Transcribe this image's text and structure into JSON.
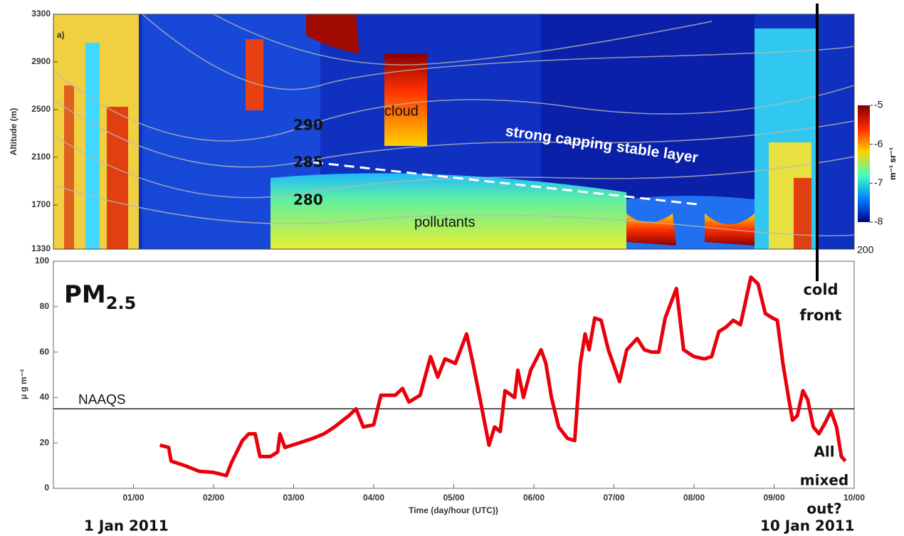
{
  "chart_data": [
    {
      "type": "heatmap",
      "panel_label": "a)",
      "ylabel": "Altitude (m)",
      "ylim": [
        1330,
        3300
      ],
      "yticks": [
        1330,
        1700,
        2100,
        2500,
        2900,
        3300
      ],
      "colorbar": {
        "label": "m⁻¹ sr⁻¹",
        "lim": [
          -8,
          -5
        ],
        "ticks": [
          -5,
          -6,
          -7,
          -8
        ]
      },
      "corner_label": "200",
      "contour_labels": [
        290,
        285,
        280
      ],
      "annotations": {
        "cloud": "cloud",
        "layer": "strong capping stable layer",
        "pollutants": "pollutants"
      }
    },
    {
      "type": "line",
      "title": "PM",
      "title_subscript": "2.5",
      "ylabel": "μ g m⁻³",
      "xlabel": "Time (day/hour (UTC))",
      "xlim": [
        0,
        10
      ],
      "xticks": [
        {
          "value": 1,
          "label": "01/00"
        },
        {
          "value": 2,
          "label": "02/00"
        },
        {
          "value": 3,
          "label": "03/00"
        },
        {
          "value": 4,
          "label": "04/00"
        },
        {
          "value": 5,
          "label": "05/00"
        },
        {
          "value": 6,
          "label": "06/00"
        },
        {
          "value": 7,
          "label": "07/00"
        },
        {
          "value": 8,
          "label": "08/00"
        },
        {
          "value": 9,
          "label": "09/00"
        },
        {
          "value": 10,
          "label": "10/00"
        }
      ],
      "ylim": [
        0,
        100
      ],
      "yticks": [
        0,
        20,
        40,
        60,
        80,
        100
      ],
      "reference_line": {
        "label": "NAAQS",
        "value": 35
      },
      "series": [
        {
          "color": "#e8000b",
          "x": [
            1.33,
            1.44,
            1.47,
            1.64,
            1.82,
            2.0,
            2.16,
            2.22,
            2.36,
            2.44,
            2.52,
            2.58,
            2.71,
            2.8,
            2.83,
            2.89,
            3.07,
            3.24,
            3.38,
            3.51,
            3.69,
            3.78,
            3.87,
            4.0,
            4.09,
            4.27,
            4.36,
            4.44,
            4.58,
            4.71,
            4.8,
            4.89,
            5.02,
            5.16,
            5.24,
            5.33,
            5.44,
            5.51,
            5.58,
            5.64,
            5.76,
            5.8,
            5.87,
            5.96,
            6.09,
            6.15,
            6.22,
            6.31,
            6.42,
            6.51,
            6.58,
            6.64,
            6.69,
            6.76,
            6.84,
            6.93,
            7.07,
            7.16,
            7.29,
            7.38,
            7.47,
            7.56,
            7.64,
            7.78,
            7.87,
            8.0,
            8.13,
            8.22,
            8.31,
            8.4,
            8.49,
            8.58,
            8.71,
            8.8,
            8.89,
            8.98,
            9.04,
            9.11,
            9.18,
            9.23,
            9.29,
            9.36,
            9.42,
            9.49,
            9.56,
            9.64,
            9.71,
            9.78,
            9.84,
            9.89
          ],
          "values": [
            19,
            18,
            12,
            10,
            7.5,
            7,
            5.6,
            11,
            21,
            24,
            24,
            14,
            14,
            16,
            24,
            18,
            20,
            22,
            24,
            27,
            32,
            35,
            27,
            28,
            41,
            41,
            44,
            38,
            41,
            58,
            49,
            57,
            55,
            68,
            55,
            39,
            19,
            27,
            25,
            43,
            40,
            52,
            40,
            52,
            61,
            55,
            40,
            27,
            22,
            21,
            55,
            68,
            61,
            75,
            74,
            61,
            47,
            61,
            66,
            61,
            60,
            60,
            75,
            88,
            61,
            58,
            57,
            58,
            69,
            71,
            74,
            72,
            93,
            90,
            77,
            75,
            74,
            55,
            40,
            30,
            32,
            43,
            39,
            27,
            24,
            29,
            34,
            27,
            14,
            12
          ]
        }
      ],
      "annotations": {
        "start_date": "1 Jan 2011",
        "end_date": "10 Jan 2011",
        "note": [
          "All",
          "mixed",
          "out?"
        ],
        "front": [
          "cold",
          "front"
        ]
      }
    }
  ]
}
